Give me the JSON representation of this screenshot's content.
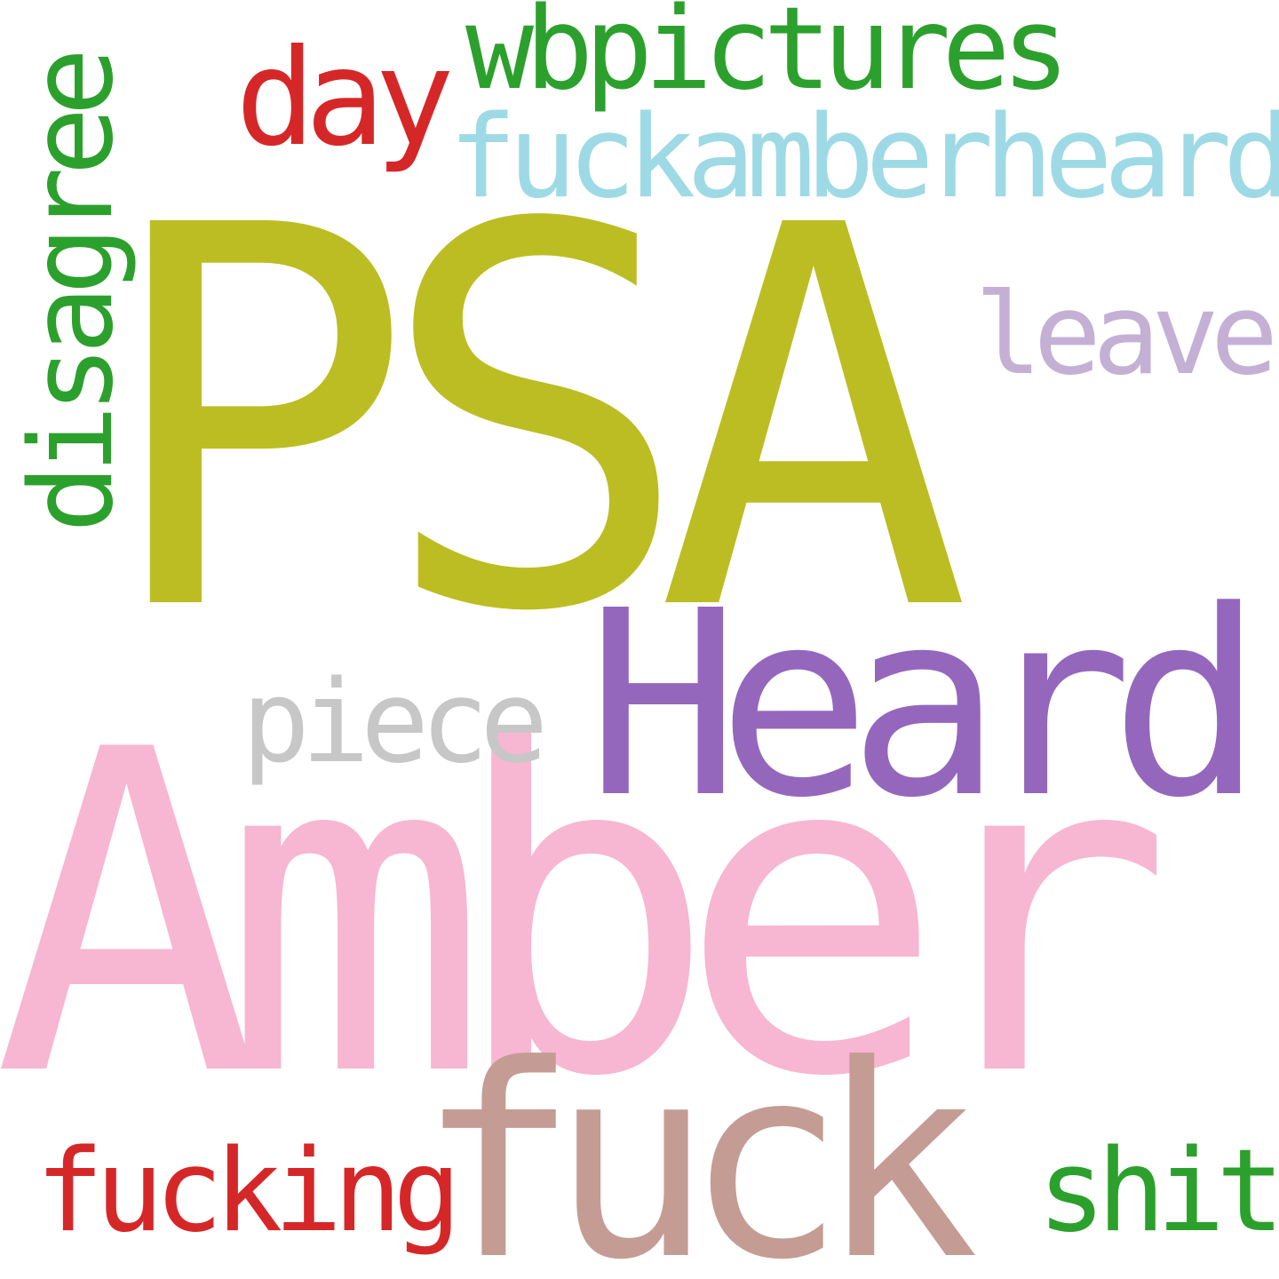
{
  "background": "#ffffff",
  "words": {
    "psa": {
      "text": "PSA",
      "color": "#bcbd22"
    },
    "amber": {
      "text": "Amber",
      "color": "#f7b6d2"
    },
    "heard": {
      "text": "Heard",
      "color": "#9467bd"
    },
    "fuck": {
      "text": "fuck",
      "color": "#c49c94"
    },
    "fuckamberheard": {
      "text": "fuckamberheard",
      "color": "#9edae5"
    },
    "wbpictures": {
      "text": "wbpictures",
      "color": "#2ca02c"
    },
    "day": {
      "text": "day",
      "color": "#d62728"
    },
    "leave": {
      "text": "leave",
      "color": "#c5b0d5"
    },
    "piece": {
      "text": "piece",
      "color": "#c7c7c7"
    },
    "fucking": {
      "text": "fucking",
      "color": "#d62728"
    },
    "shit": {
      "text": "shit",
      "color": "#2ca02c"
    },
    "disagree": {
      "text": "disagree",
      "color": "#2ca02c"
    }
  }
}
